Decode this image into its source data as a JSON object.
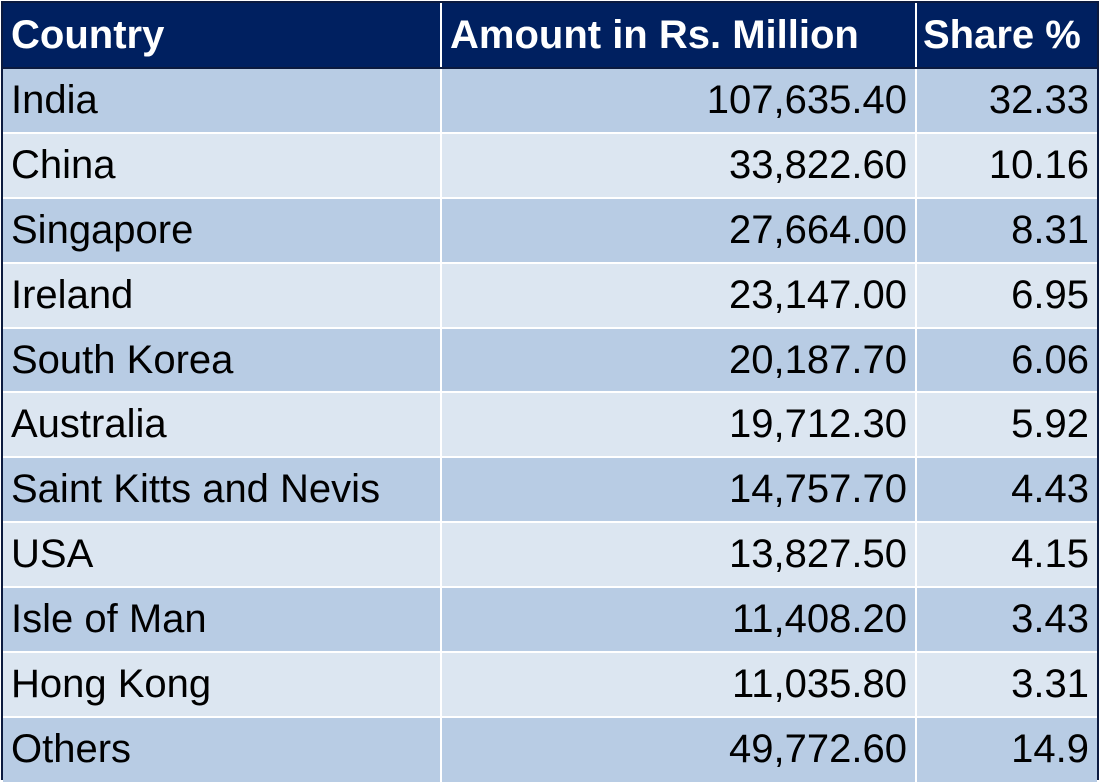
{
  "chart_data": {
    "type": "table",
    "columns": [
      "Country",
      "Amount in Rs. Million",
      "Share %"
    ],
    "rows": [
      [
        "India",
        "107,635.40",
        "32.33"
      ],
      [
        "China",
        "33,822.60",
        "10.16"
      ],
      [
        "Singapore",
        "27,664.00",
        "8.31"
      ],
      [
        "Ireland",
        "23,147.00",
        "6.95"
      ],
      [
        "South Korea",
        "20,187.70",
        "6.06"
      ],
      [
        "Australia",
        "19,712.30",
        "5.92"
      ],
      [
        "Saint Kitts and Nevis",
        "14,757.70",
        "4.43"
      ],
      [
        "USA",
        "13,827.50",
        "4.15"
      ],
      [
        "Isle of Man",
        "11,408.20",
        "3.43"
      ],
      [
        "Hong Kong",
        "11,035.80",
        "3.31"
      ],
      [
        "Others",
        "49,772.60",
        "14.9"
      ]
    ],
    "colors": {
      "header_bg": "#002060",
      "header_text": "#ffffff",
      "row_dark": "#b8cce4",
      "row_light": "#dce6f1"
    }
  }
}
